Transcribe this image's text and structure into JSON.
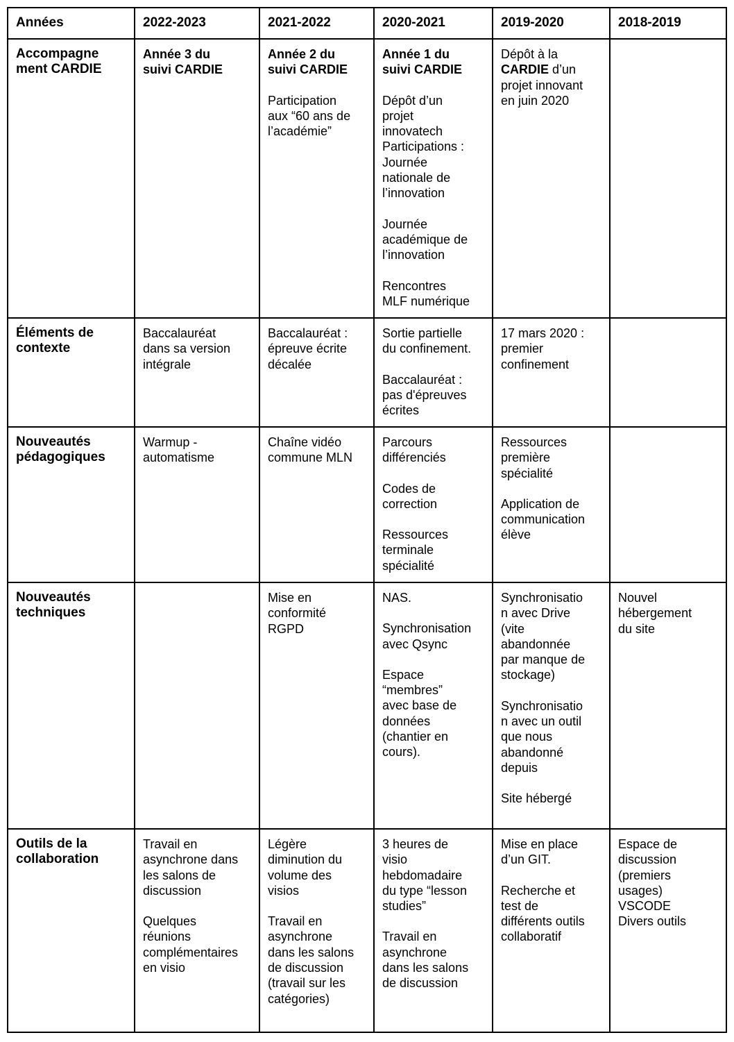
{
  "header": [
    "Années",
    "2022-2023",
    "2021-2022",
    "2020-2021",
    "2019-2020",
    "2018-2019"
  ],
  "rows": [
    {
      "label": "Accompagne\nment CARDIE",
      "cells": [
        [
          [
            {
              "t": "Année 3 du\nsuivi CARDIE",
              "b": true
            }
          ]
        ],
        [
          [
            {
              "t": "Année 2 du\nsuivi CARDIE",
              "b": true
            }
          ],
          [
            {
              "t": "Participation\naux “60 ans de\nl’académie”"
            }
          ]
        ],
        [
          [
            {
              "t": "Année 1 du\nsuivi CARDIE",
              "b": true
            }
          ],
          [
            {
              "t": "Dépôt d’un\nprojet\ninnovatech\nParticipations :\nJournée\nnationale de\nl’innovation"
            }
          ],
          [
            {
              "t": "Journée\nacadémique de\nl’innovation"
            }
          ],
          [
            {
              "t": "Rencontres\nMLF numérique"
            }
          ]
        ],
        [
          [
            {
              "t": "Dépôt à la\n"
            },
            {
              "t": "CARDIE",
              "b": true
            },
            {
              "t": " d’un\nprojet innovant\nen juin 2020"
            }
          ]
        ],
        []
      ]
    },
    {
      "label": "Éléments de\ncontexte",
      "cells": [
        [
          [
            {
              "t": "Baccalauréat\ndans sa version\nintégrale"
            }
          ]
        ],
        [
          [
            {
              "t": "Baccalauréat :\népreuve écrite\ndécalée"
            }
          ]
        ],
        [
          [
            {
              "t": "Sortie partielle\ndu confinement."
            }
          ],
          [
            {
              "t": "Baccalauréat :\npas d'épreuves\nécrites"
            }
          ]
        ],
        [
          [
            {
              "t": "17 mars 2020 :\npremier\nconfinement"
            }
          ]
        ],
        []
      ]
    },
    {
      "label": "Nouveautés\npédagogiques",
      "cells": [
        [
          [
            {
              "t": "Warmup -\nautomatisme"
            }
          ]
        ],
        [
          [
            {
              "t": "Chaîne vidéo\ncommune MLN"
            }
          ]
        ],
        [
          [
            {
              "t": "Parcours\ndifférenciés"
            }
          ],
          [
            {
              "t": "Codes de\ncorrection"
            }
          ],
          [
            {
              "t": "Ressources\nterminale\nspécialité"
            }
          ]
        ],
        [
          [
            {
              "t": "Ressources\npremière\nspécialité"
            }
          ],
          [
            {
              "t": "Application de\ncommunication\nélève"
            }
          ]
        ],
        []
      ]
    },
    {
      "label": "Nouveautés\ntechniques",
      "cells": [
        [],
        [
          [
            {
              "t": "Mise en\nconformité\nRGPD"
            }
          ]
        ],
        [
          [
            {
              "t": "NAS."
            }
          ],
          [
            {
              "t": "Synchronisation\navec Qsync"
            }
          ],
          [
            {
              "t": "Espace\n“membres”\navec base de\ndonnées\n(chantier en\ncours)."
            }
          ]
        ],
        [
          [
            {
              "t": "Synchronisatio\nn avec Drive\n(vite\nabandonnée\npar manque de\nstockage)"
            }
          ],
          [
            {
              "t": "Synchronisatio\nn avec un outil\nque nous\nabandonné\ndepuis"
            }
          ],
          [
            {
              "t": "Site hébergé"
            }
          ]
        ],
        [
          [
            {
              "t": "Nouvel\nhébergement\ndu site"
            }
          ]
        ]
      ]
    },
    {
      "label": "Outils de la\ncollaboration",
      "cells": [
        [
          [
            {
              "t": "Travail en\nasynchrone dans\nles salons de\ndiscussion"
            }
          ],
          [
            {
              "t": "Quelques\nréunions\ncomplémentaires\nen visio"
            }
          ]
        ],
        [
          [
            {
              "t": "Légère\ndiminution du\nvolume des\nvisios"
            }
          ],
          [
            {
              "t": "Travail en\nasynchrone\ndans les salons\nde discussion\n(travail sur les\ncatégories)"
            }
          ]
        ],
        [
          [
            {
              "t": "3 heures de\nvisio\nhebdomadaire\ndu type “lesson\nstudies”"
            }
          ],
          [
            {
              "t": "Travail en\nasynchrone\ndans les salons\nde discussion"
            }
          ]
        ],
        [
          [
            {
              "t": "Mise en place\nd’un GIT."
            }
          ],
          [
            {
              "t": "Recherche et\ntest de\ndifférents outils\ncollaboratif"
            }
          ]
        ],
        [
          [
            {
              "t": "Espace de\ndiscussion\n(premiers\nusages)\nVSCODE\nDivers outils"
            }
          ]
        ]
      ]
    }
  ]
}
